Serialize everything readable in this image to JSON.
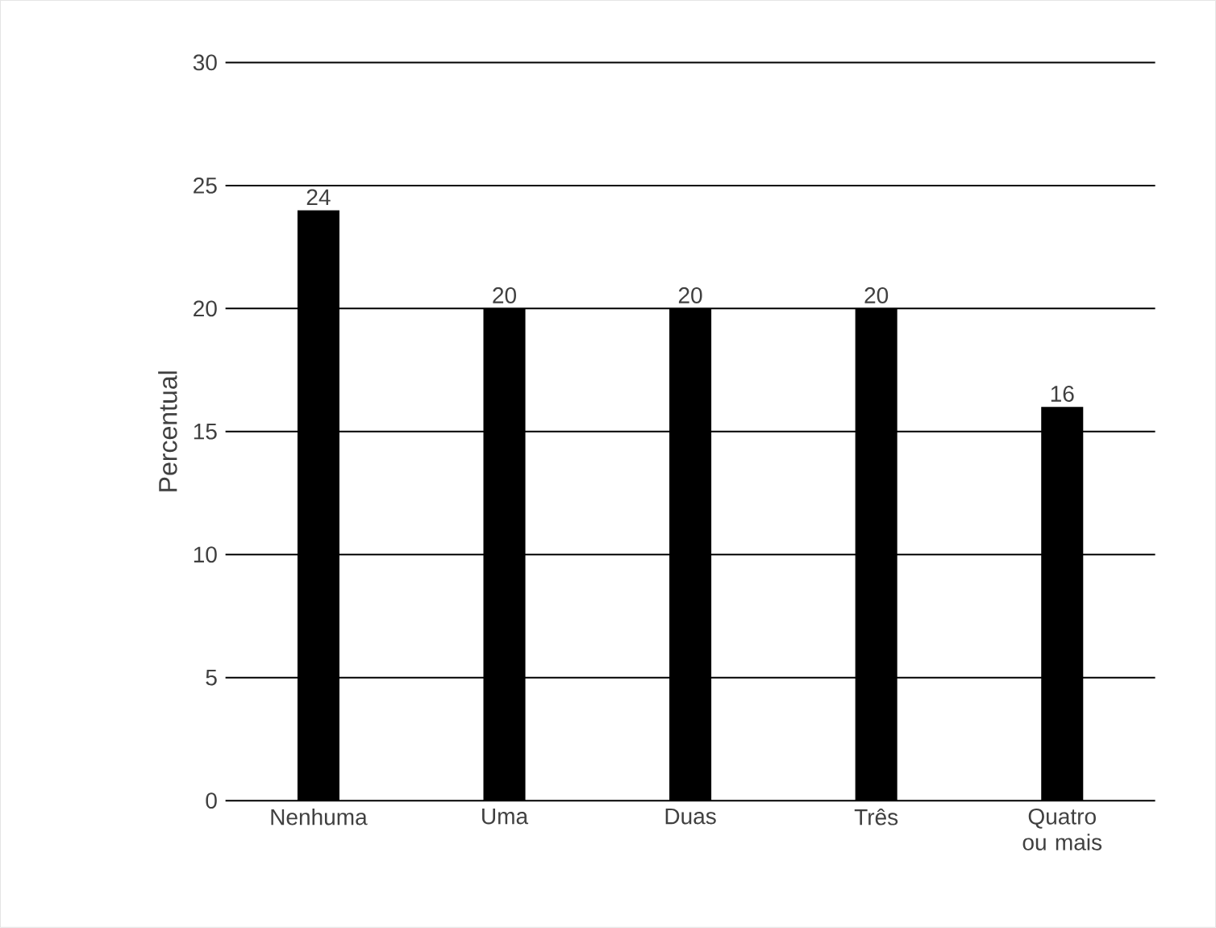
{
  "chart_data": {
    "type": "bar",
    "ylabel": "Percentual",
    "categories": [
      "Nenhuma",
      "Uma",
      "Duas",
      "Três",
      "Quatro ou mais"
    ],
    "values": [
      24,
      20,
      20,
      20,
      16
    ],
    "color": "#000000",
    "ylim": [
      0,
      30
    ],
    "yticks": [
      0,
      5,
      10,
      15,
      20,
      25,
      30
    ],
    "grid": "y",
    "data_labels": true
  }
}
